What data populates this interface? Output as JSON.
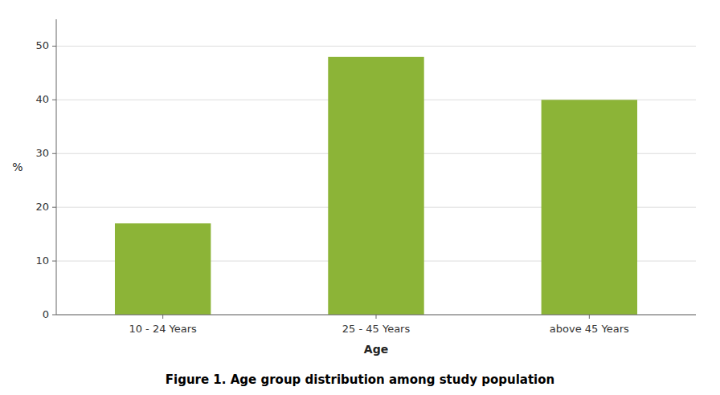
{
  "chart_data": {
    "type": "bar",
    "title": "Figure 1. Age group distribution among study population",
    "xlabel": "Age",
    "ylabel": "%",
    "categories": [
      "10 - 24 Years",
      "25 - 45 Years",
      "above 45 Years"
    ],
    "values": [
      17,
      48,
      40
    ],
    "color": "#8CB437",
    "ylim": [
      0,
      55
    ],
    "yticks": [
      0,
      10,
      20,
      30,
      40,
      50
    ],
    "grid": true
  }
}
